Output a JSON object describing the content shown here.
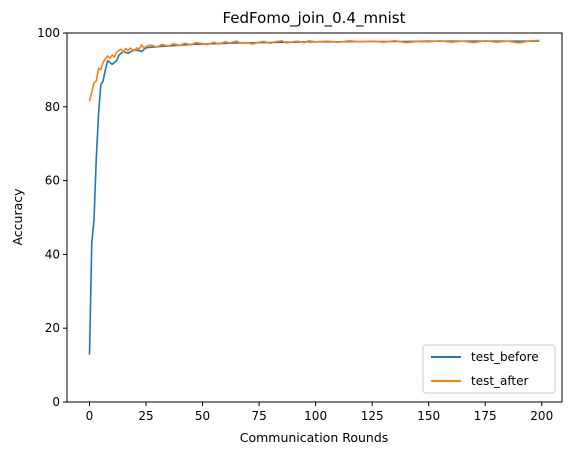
{
  "chart_data": {
    "type": "line",
    "title": "FedFomo_join_0.4_mnist",
    "xlabel": "Communication Rounds",
    "ylabel": "Accuracy",
    "xlim": [
      -9.95,
      208.95
    ],
    "ylim": [
      0,
      100
    ],
    "xticks": [
      0,
      25,
      50,
      75,
      100,
      125,
      150,
      175,
      200
    ],
    "yticks": [
      0,
      20,
      40,
      60,
      80,
      100
    ],
    "grid": false,
    "legend_position": "lower right",
    "series": [
      {
        "name": "test_before",
        "color": "#1f77b4",
        "x": [
          0,
          1,
          2,
          3,
          4,
          5,
          6,
          7,
          8,
          9,
          10,
          11,
          12,
          13,
          14,
          15,
          17,
          20,
          23,
          25,
          30,
          35,
          40,
          45,
          50,
          55,
          60,
          65,
          70,
          75,
          80,
          85,
          90,
          95,
          100,
          110,
          120,
          130,
          140,
          150,
          160,
          170,
          180,
          190,
          199
        ],
        "values": [
          12.8,
          43.0,
          49.5,
          66.0,
          78.0,
          86.0,
          87.0,
          90.0,
          92.5,
          92.0,
          91.5,
          92.0,
          92.5,
          94.0,
          94.5,
          95.0,
          94.5,
          95.5,
          95.0,
          96.0,
          96.3,
          96.5,
          96.7,
          96.9,
          97.0,
          97.1,
          97.2,
          97.3,
          97.3,
          97.4,
          97.4,
          97.5,
          97.5,
          97.6,
          97.6,
          97.6,
          97.7,
          97.7,
          97.7,
          97.8,
          97.8,
          97.8,
          97.8,
          97.8,
          97.8
        ]
      },
      {
        "name": "test_after",
        "color": "#ff7f0e",
        "x": [
          0,
          1,
          2,
          3,
          4,
          5,
          6,
          7,
          8,
          9,
          10,
          11,
          12,
          13,
          14,
          15,
          16,
          17,
          18,
          19,
          20,
          21,
          22,
          23,
          24,
          25,
          27,
          30,
          32,
          35,
          37,
          40,
          42,
          45,
          47,
          50,
          52,
          55,
          57,
          60,
          62,
          65,
          67,
          70,
          72,
          75,
          77,
          80,
          82,
          85,
          87,
          90,
          92,
          95,
          97,
          100,
          105,
          110,
          115,
          120,
          125,
          130,
          135,
          140,
          145,
          150,
          155,
          160,
          165,
          170,
          175,
          180,
          185,
          190,
          195,
          199
        ],
        "values": [
          81.5,
          84.0,
          86.5,
          87.0,
          90.5,
          90.0,
          92.0,
          93.0,
          93.8,
          93.2,
          94.0,
          93.5,
          94.8,
          95.3,
          95.6,
          94.9,
          95.8,
          95.2,
          95.9,
          95.4,
          95.2,
          96.0,
          95.6,
          96.8,
          95.9,
          96.3,
          96.7,
          96.2,
          96.9,
          96.4,
          97.1,
          96.6,
          97.2,
          96.8,
          97.4,
          97.1,
          96.9,
          97.5,
          97.0,
          97.6,
          97.3,
          97.8,
          97.2,
          97.4,
          97.0,
          97.5,
          97.7,
          97.2,
          97.6,
          97.9,
          97.3,
          97.6,
          97.8,
          97.4,
          97.9,
          97.6,
          97.8,
          97.5,
          97.9,
          97.6,
          97.8,
          97.5,
          97.9,
          97.4,
          97.7,
          97.6,
          97.9,
          97.5,
          97.8,
          97.4,
          97.9,
          97.5,
          97.8,
          97.3,
          97.9,
          98.0
        ]
      }
    ]
  }
}
